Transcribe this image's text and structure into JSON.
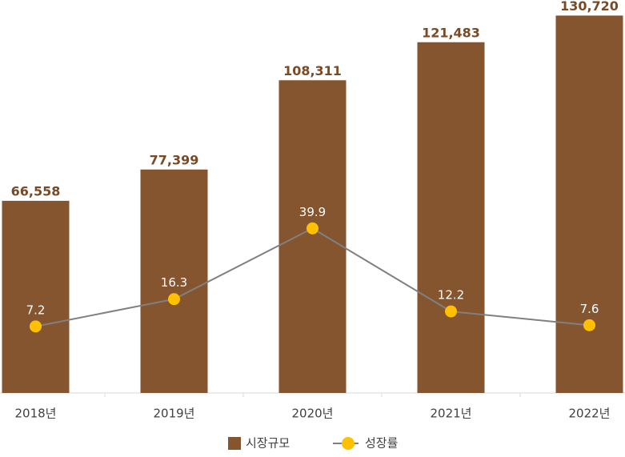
{
  "chart_data": {
    "type": "bar",
    "categories": [
      "2018년",
      "2019년",
      "2020년",
      "2021년",
      "2022년"
    ],
    "series": [
      {
        "name": "시장규모",
        "type": "bar",
        "color": "#84552f",
        "values": [
          66558,
          77399,
          108311,
          121483,
          130720
        ],
        "value_labels": [
          "66,558",
          "77,399",
          "108,311",
          "121,483",
          "130,720"
        ]
      },
      {
        "name": "성장률",
        "type": "line",
        "axis": "y2",
        "color": "#808080",
        "marker_color": "#ffc000",
        "values": [
          7.2,
          16.3,
          39.9,
          12.2,
          7.6
        ]
      }
    ],
    "ylim": [
      0,
      135000
    ],
    "y2lim": [
      -15,
      115
    ],
    "legend": "bottom"
  }
}
